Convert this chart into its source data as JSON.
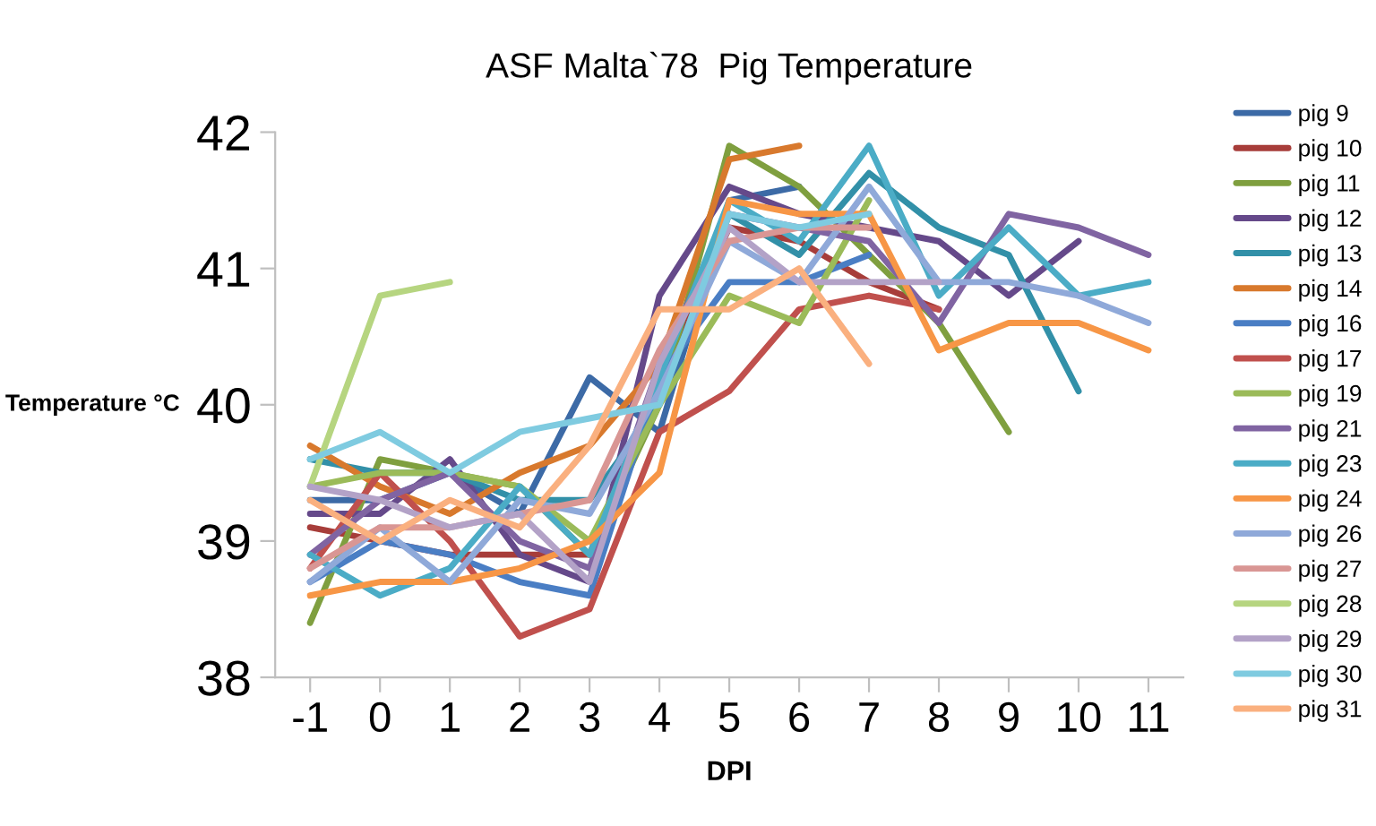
{
  "chart_data": {
    "type": "line",
    "title": "ASF Malta`78  Pig Temperature",
    "xlabel": "DPI",
    "ylabel": "Temperature °C",
    "categories": [
      "-1",
      "0",
      "1",
      "2",
      "3",
      "4",
      "5",
      "6",
      "7",
      "8",
      "9",
      "10",
      "11"
    ],
    "ylim": [
      38,
      42
    ],
    "yticks": [
      38,
      39,
      40,
      41,
      42
    ],
    "grid": false,
    "legend": "right",
    "marker": "none",
    "line_style": "solid",
    "series": [
      {
        "name": "pig 9",
        "color": "#3c6aa6",
        "values": [
          39.3,
          39.3,
          39.5,
          39.2,
          40.2,
          39.8,
          41.5,
          41.6,
          null,
          null,
          null,
          null,
          null
        ]
      },
      {
        "name": "pig 10",
        "color": "#a73d3a",
        "values": [
          39.1,
          39.0,
          38.9,
          38.9,
          38.9,
          40.2,
          41.3,
          41.2,
          40.9,
          40.7,
          null,
          null,
          null
        ]
      },
      {
        "name": "pig 11",
        "color": "#7f9f3f",
        "values": [
          38.4,
          39.6,
          39.5,
          39.4,
          38.9,
          40.0,
          41.9,
          41.6,
          41.1,
          40.6,
          39.8,
          null,
          null
        ]
      },
      {
        "name": "pig 12",
        "color": "#65498a",
        "values": [
          39.2,
          39.2,
          39.6,
          38.9,
          38.7,
          40.8,
          41.6,
          41.4,
          41.3,
          41.2,
          40.8,
          41.2,
          null
        ]
      },
      {
        "name": "pig 13",
        "color": "#3290a8",
        "values": [
          39.6,
          39.5,
          39.5,
          39.3,
          39.3,
          40.0,
          41.4,
          41.1,
          41.7,
          41.3,
          41.1,
          40.1,
          null
        ]
      },
      {
        "name": "pig 14",
        "color": "#d8792d",
        "values": [
          39.7,
          39.4,
          39.2,
          39.5,
          39.7,
          40.3,
          41.8,
          41.9,
          null,
          null,
          null,
          null,
          null
        ]
      },
      {
        "name": "pig 16",
        "color": "#4a7ec4",
        "values": [
          38.7,
          39.0,
          38.9,
          38.7,
          38.6,
          40.2,
          40.9,
          40.9,
          41.1,
          null,
          null,
          null,
          null
        ]
      },
      {
        "name": "pig 17",
        "color": "#c0504d",
        "values": [
          38.8,
          39.5,
          39.0,
          38.3,
          38.5,
          39.8,
          40.1,
          40.7,
          40.8,
          40.7,
          null,
          null,
          null
        ]
      },
      {
        "name": "pig 19",
        "color": "#9bbb59",
        "values": [
          39.4,
          39.5,
          39.5,
          39.4,
          39.0,
          40.0,
          40.8,
          40.6,
          41.5,
          null,
          null,
          null,
          null
        ]
      },
      {
        "name": "pig 21",
        "color": "#8064a2",
        "values": [
          38.9,
          39.3,
          39.5,
          39.0,
          38.8,
          40.3,
          41.4,
          41.3,
          41.2,
          40.6,
          41.4,
          41.3,
          41.1
        ]
      },
      {
        "name": "pig 23",
        "color": "#4bacc6",
        "values": [
          38.9,
          38.6,
          38.8,
          39.4,
          38.9,
          40.2,
          41.5,
          41.2,
          41.9,
          40.8,
          41.3,
          40.8,
          40.9
        ]
      },
      {
        "name": "pig 24",
        "color": "#f79646",
        "values": [
          38.6,
          38.7,
          38.7,
          38.8,
          39.0,
          39.5,
          41.5,
          41.4,
          41.4,
          40.4,
          40.6,
          40.6,
          40.4
        ]
      },
      {
        "name": "pig 26",
        "color": "#8fa9d9",
        "values": [
          38.7,
          39.1,
          38.7,
          39.3,
          39.2,
          40.1,
          41.2,
          40.9,
          41.6,
          40.9,
          40.9,
          40.8,
          40.6
        ]
      },
      {
        "name": "pig 27",
        "color": "#d99694",
        "values": [
          38.8,
          39.1,
          39.1,
          39.2,
          39.3,
          40.4,
          41.2,
          41.3,
          41.3,
          null,
          null,
          null,
          null
        ]
      },
      {
        "name": "pig 28",
        "color": "#b6d580",
        "values": [
          39.4,
          40.8,
          40.9,
          null,
          null,
          null,
          null,
          null,
          null,
          null,
          null,
          null,
          null
        ]
      },
      {
        "name": "pig 29",
        "color": "#b3a2c7",
        "values": [
          39.4,
          39.3,
          39.1,
          39.2,
          38.7,
          40.3,
          41.3,
          40.9,
          40.9,
          40.9,
          null,
          null,
          null
        ]
      },
      {
        "name": "pig 30",
        "color": "#7fcbe0",
        "values": [
          39.6,
          39.8,
          39.5,
          39.8,
          39.9,
          40.0,
          41.4,
          41.3,
          41.4,
          null,
          null,
          null,
          null
        ]
      },
      {
        "name": "pig 31",
        "color": "#fab07f",
        "values": [
          39.3,
          39.0,
          39.3,
          39.1,
          39.7,
          40.7,
          40.7,
          41.0,
          40.3,
          null,
          null,
          null,
          null
        ]
      }
    ]
  }
}
